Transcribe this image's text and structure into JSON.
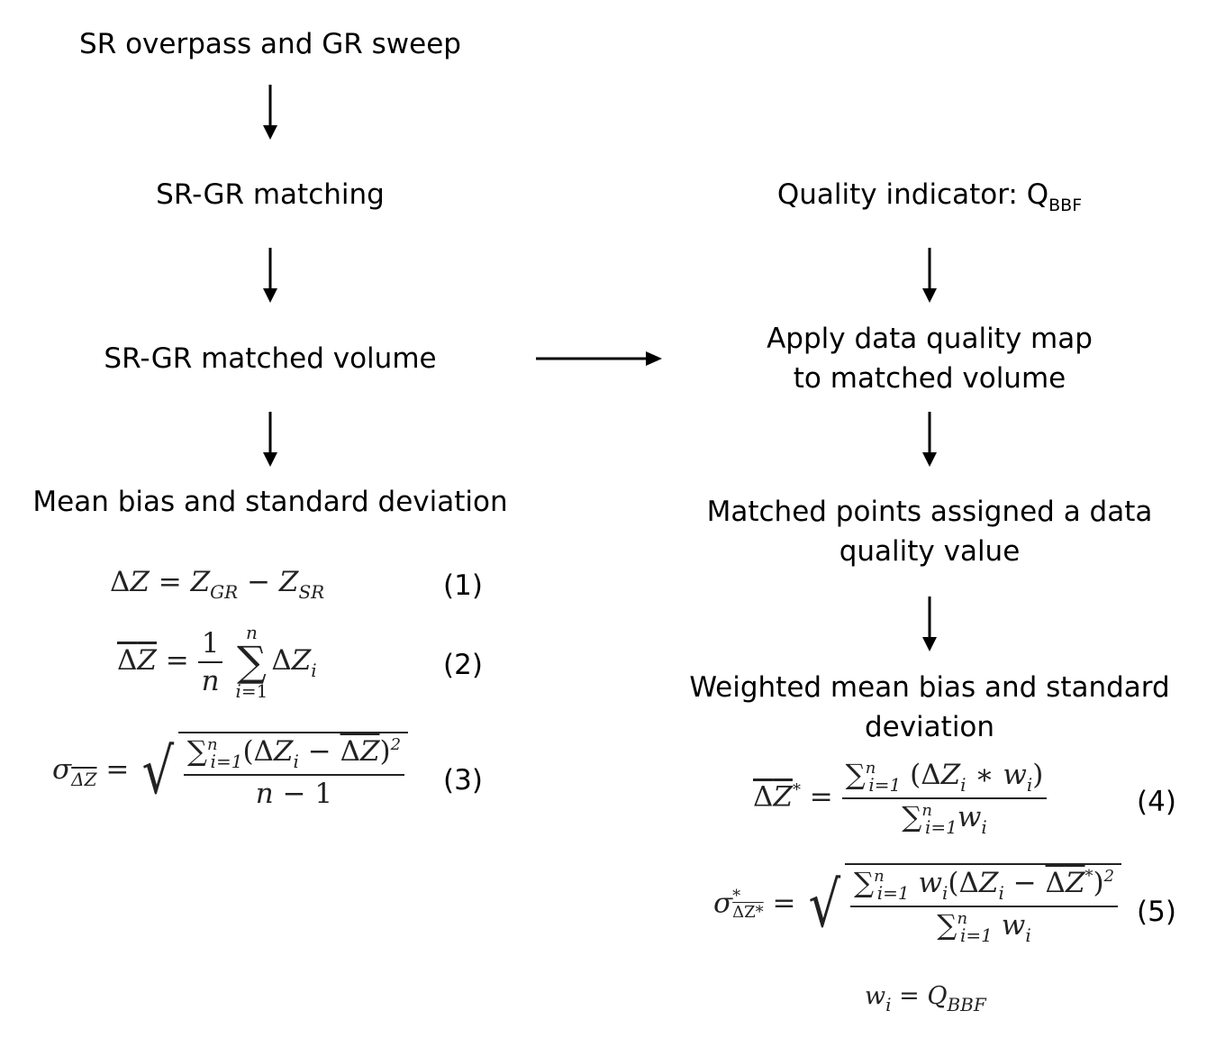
{
  "left": {
    "step1": "SR overpass and GR sweep",
    "step2": "SR-GR matching",
    "step3": "SR-GR matched volume",
    "step4": "Mean bias and standard deviation",
    "eq_numbers": [
      "(1)",
      "(2)",
      "(3)"
    ]
  },
  "right": {
    "step1_label": "Quality indicator: Q",
    "step1_sub": "BBF",
    "step2_line1": "Apply data quality map",
    "step2_line2": "to matched volume",
    "step3_line1": "Matched points assigned a data",
    "step3_line2": "quality value",
    "step4_line1": "Weighted mean bias and standard",
    "step4_line2": "deviation",
    "eq_numbers": [
      "(4)",
      "(5)"
    ]
  }
}
